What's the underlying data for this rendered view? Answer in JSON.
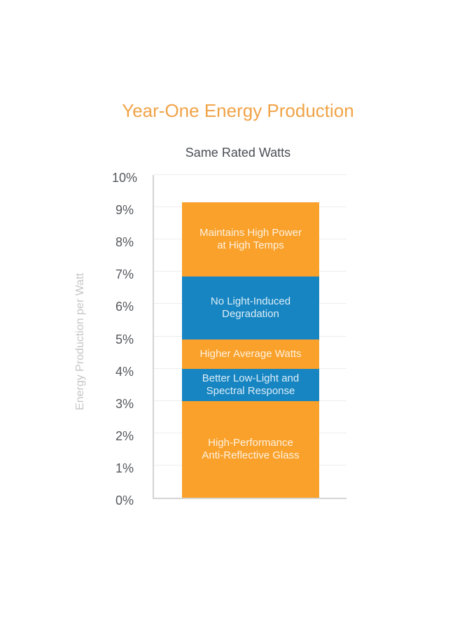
{
  "chart_data": {
    "type": "bar",
    "subtype": "single-stacked-column",
    "title": "Year-One Energy Production",
    "subtitle": "Same Rated Watts",
    "ylabel": "Energy Production per Watt",
    "ylim": [
      0,
      10
    ],
    "ytick_step": 1,
    "ytick_labels": [
      "0%",
      "1%",
      "2%",
      "3%",
      "4%",
      "5%",
      "6%",
      "7%",
      "8%",
      "9%",
      "10%"
    ],
    "grid": true,
    "legend": "none",
    "bar_total": 9.15,
    "segments": [
      {
        "label": "High-Performance Anti-Reflective Glass",
        "label_lines": [
          "High-Performance",
          "Anti-Reflective Glass"
        ],
        "value": 3.0,
        "color_key": "orange"
      },
      {
        "label": "Better Low-Light and Spectral Response",
        "label_lines": [
          "Better Low-Light and",
          "Spectral Response"
        ],
        "value": 1.0,
        "color_key": "blue"
      },
      {
        "label": "Higher Average Watts",
        "label_lines": [
          "Higher Average Watts"
        ],
        "value": 0.9,
        "color_key": "orange"
      },
      {
        "label": "No Light-Induced Degradation",
        "label_lines": [
          "No Light-Induced",
          "Degradation"
        ],
        "value": 1.95,
        "color_key": "blue"
      },
      {
        "label": "Maintains High Power at High Temps",
        "label_lines": [
          "Maintains High Power",
          "at High Temps"
        ],
        "value": 2.3,
        "color_key": "orange"
      }
    ],
    "colors": {
      "orange": "#F9A12B",
      "blue": "#1785C2",
      "title_text": "#F0A347",
      "subtitle_text": "#4A4E54",
      "tick_text": "#55575B",
      "ylabel_text": "#C6C6C8",
      "axis": "#D4D4D4",
      "grid": "#EDEDED",
      "segment_text": "rgba(255,255,255,0.85)"
    }
  }
}
